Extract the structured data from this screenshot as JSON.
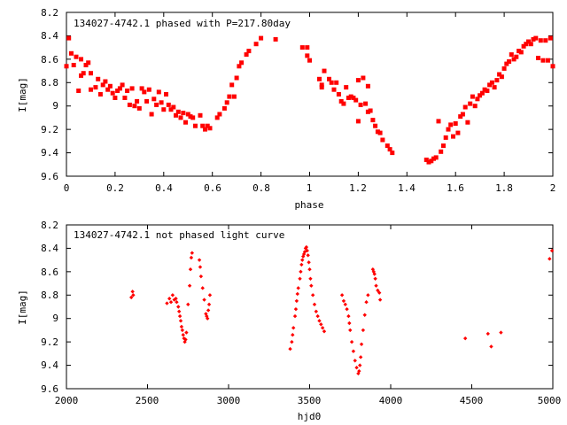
{
  "chart_data": [
    {
      "type": "scatter",
      "title": "134027-4742.1 phased with P=217.80day",
      "xlabel": "phase",
      "ylabel": "I[mag]",
      "xlim": [
        0,
        2
      ],
      "ylim": [
        9.6,
        8.2
      ],
      "y_inverted": true,
      "xticks": [
        "0",
        "0.2",
        "0.4",
        "0.6",
        "0.8",
        "1",
        "1.2",
        "1.4",
        "1.6",
        "1.8",
        "2"
      ],
      "yticks": [
        "8.2",
        "8.4",
        "8.6",
        "8.8",
        "9",
        "9.2",
        "9.4",
        "9.6"
      ],
      "grid": false,
      "marker_color": "#ff0000",
      "marker": "filled-square",
      "series": [
        {
          "points": [
            [
              0.0,
              8.66
            ],
            [
              0.01,
              8.42
            ],
            [
              0.02,
              8.55
            ],
            [
              0.03,
              8.65
            ],
            [
              0.04,
              8.58
            ],
            [
              0.05,
              8.87
            ],
            [
              0.06,
              8.74
            ],
            [
              0.06,
              8.6
            ],
            [
              0.07,
              8.72
            ],
            [
              0.08,
              8.65
            ],
            [
              0.09,
              8.63
            ],
            [
              0.1,
              8.86
            ],
            [
              0.1,
              8.72
            ],
            [
              0.12,
              8.84
            ],
            [
              0.13,
              8.77
            ],
            [
              0.14,
              8.9
            ],
            [
              0.15,
              8.82
            ],
            [
              0.16,
              8.79
            ],
            [
              0.17,
              8.86
            ],
            [
              0.18,
              8.83
            ],
            [
              0.19,
              8.89
            ],
            [
              0.2,
              8.93
            ],
            [
              0.21,
              8.87
            ],
            [
              0.22,
              8.85
            ],
            [
              0.23,
              8.82
            ],
            [
              0.24,
              8.93
            ],
            [
              0.25,
              8.87
            ],
            [
              0.26,
              8.99
            ],
            [
              0.27,
              8.85
            ],
            [
              0.28,
              9.0
            ],
            [
              0.29,
              8.96
            ],
            [
              0.3,
              9.02
            ],
            [
              0.31,
              8.85
            ],
            [
              0.32,
              8.88
            ],
            [
              0.33,
              8.96
            ],
            [
              0.34,
              8.86
            ],
            [
              0.35,
              9.07
            ],
            [
              0.36,
              8.94
            ],
            [
              0.37,
              8.99
            ],
            [
              0.38,
              8.88
            ],
            [
              0.39,
              8.97
            ],
            [
              0.4,
              9.03
            ],
            [
              0.41,
              8.9
            ],
            [
              0.42,
              8.99
            ],
            [
              0.43,
              9.03
            ],
            [
              0.44,
              9.01
            ],
            [
              0.45,
              9.08
            ],
            [
              0.46,
              9.05
            ],
            [
              0.47,
              9.1
            ],
            [
              0.48,
              9.06
            ],
            [
              0.49,
              9.14
            ],
            [
              0.5,
              9.07
            ],
            [
              0.51,
              9.09
            ],
            [
              0.52,
              9.1
            ],
            [
              0.53,
              9.17
            ],
            [
              0.55,
              9.08
            ],
            [
              0.56,
              9.17
            ],
            [
              0.57,
              9.2
            ],
            [
              0.58,
              9.17
            ],
            [
              0.59,
              9.19
            ],
            [
              0.62,
              9.1
            ],
            [
              0.63,
              9.07
            ],
            [
              0.65,
              9.02
            ],
            [
              0.66,
              8.97
            ],
            [
              0.67,
              8.92
            ],
            [
              0.68,
              8.82
            ],
            [
              0.69,
              8.92
            ],
            [
              0.7,
              8.76
            ],
            [
              0.71,
              8.66
            ],
            [
              0.72,
              8.63
            ],
            [
              0.74,
              8.56
            ],
            [
              0.75,
              8.53
            ],
            [
              0.78,
              8.47
            ],
            [
              0.8,
              8.42
            ],
            [
              0.86,
              8.43
            ],
            [
              0.97,
              8.5
            ],
            [
              0.99,
              8.5
            ],
            [
              0.99,
              8.57
            ],
            [
              1.0,
              8.61
            ],
            [
              1.04,
              8.77
            ],
            [
              1.05,
              8.82
            ],
            [
              1.05,
              8.84
            ],
            [
              1.06,
              8.7
            ],
            [
              1.08,
              8.77
            ],
            [
              1.09,
              8.8
            ],
            [
              1.1,
              8.86
            ],
            [
              1.11,
              8.8
            ],
            [
              1.12,
              8.9
            ],
            [
              1.13,
              8.96
            ],
            [
              1.14,
              8.98
            ],
            [
              1.15,
              8.84
            ],
            [
              1.16,
              8.93
            ],
            [
              1.17,
              8.92
            ],
            [
              1.18,
              8.93
            ],
            [
              1.19,
              8.95
            ],
            [
              1.2,
              8.78
            ],
            [
              1.2,
              9.13
            ],
            [
              1.21,
              8.99
            ],
            [
              1.22,
              8.76
            ],
            [
              1.23,
              8.98
            ],
            [
              1.24,
              8.83
            ],
            [
              1.24,
              9.05
            ],
            [
              1.25,
              9.04
            ],
            [
              1.26,
              9.12
            ],
            [
              1.27,
              9.17
            ],
            [
              1.28,
              9.22
            ],
            [
              1.29,
              9.23
            ],
            [
              1.3,
              9.29
            ],
            [
              1.32,
              9.34
            ],
            [
              1.33,
              9.37
            ],
            [
              1.34,
              9.4
            ],
            [
              1.48,
              9.46
            ],
            [
              1.49,
              9.48
            ],
            [
              1.5,
              9.47
            ],
            [
              1.51,
              9.45
            ],
            [
              1.52,
              9.44
            ],
            [
              1.53,
              9.13
            ],
            [
              1.54,
              9.39
            ],
            [
              1.55,
              9.34
            ],
            [
              1.56,
              9.27
            ],
            [
              1.57,
              9.2
            ],
            [
              1.58,
              9.16
            ],
            [
              1.59,
              9.26
            ],
            [
              1.6,
              9.15
            ],
            [
              1.61,
              9.23
            ],
            [
              1.62,
              9.09
            ],
            [
              1.63,
              9.07
            ],
            [
              1.64,
              9.01
            ],
            [
              1.65,
              9.14
            ],
            [
              1.66,
              8.98
            ],
            [
              1.67,
              8.92
            ],
            [
              1.68,
              9.0
            ],
            [
              1.69,
              8.94
            ],
            [
              1.7,
              8.91
            ],
            [
              1.71,
              8.89
            ],
            [
              1.72,
              8.86
            ],
            [
              1.73,
              8.87
            ],
            [
              1.74,
              8.82
            ],
            [
              1.75,
              8.8
            ],
            [
              1.76,
              8.84
            ],
            [
              1.77,
              8.78
            ],
            [
              1.78,
              8.73
            ],
            [
              1.79,
              8.75
            ],
            [
              1.8,
              8.68
            ],
            [
              1.81,
              8.64
            ],
            [
              1.82,
              8.62
            ],
            [
              1.83,
              8.56
            ],
            [
              1.84,
              8.6
            ],
            [
              1.85,
              8.58
            ],
            [
              1.86,
              8.53
            ],
            [
              1.87,
              8.54
            ],
            [
              1.88,
              8.49
            ],
            [
              1.89,
              8.47
            ],
            [
              1.9,
              8.45
            ],
            [
              1.91,
              8.47
            ],
            [
              1.92,
              8.43
            ],
            [
              1.93,
              8.42
            ],
            [
              1.94,
              8.59
            ],
            [
              1.95,
              8.44
            ],
            [
              1.96,
              8.61
            ],
            [
              1.97,
              8.44
            ],
            [
              1.98,
              8.61
            ],
            [
              1.99,
              8.42
            ],
            [
              2.0,
              8.66
            ]
          ]
        }
      ]
    },
    {
      "type": "scatter",
      "title": "134027-4742.1 not phased light curve",
      "xlabel": "hjd0",
      "ylabel": "I[mag]",
      "xlim": [
        2000,
        5000
      ],
      "ylim": [
        9.6,
        8.2
      ],
      "y_inverted": true,
      "xticks": [
        "2000",
        "2500",
        "3000",
        "3500",
        "4000",
        "4500",
        "5000"
      ],
      "yticks": [
        "8.2",
        "8.4",
        "8.6",
        "8.8",
        "9",
        "9.2",
        "9.4",
        "9.6"
      ],
      "grid": false,
      "marker_color": "#ff0000",
      "marker": "filled-diamond",
      "series": [
        {
          "points": [
            [
              2400,
              8.82
            ],
            [
              2408,
              8.77
            ],
            [
              2412,
              8.8
            ],
            [
              2620,
              8.87
            ],
            [
              2635,
              8.83
            ],
            [
              2645,
              8.86
            ],
            [
              2655,
              8.8
            ],
            [
              2665,
              8.84
            ],
            [
              2675,
              8.83
            ],
            [
              2680,
              8.86
            ],
            [
              2690,
              8.9
            ],
            [
              2695,
              8.94
            ],
            [
              2700,
              8.98
            ],
            [
              2705,
              9.02
            ],
            [
              2710,
              9.07
            ],
            [
              2715,
              9.1
            ],
            [
              2720,
              9.14
            ],
            [
              2725,
              9.17
            ],
            [
              2730,
              9.2
            ],
            [
              2735,
              9.18
            ],
            [
              2740,
              9.12
            ],
            [
              2750,
              8.88
            ],
            [
              2760,
              8.72
            ],
            [
              2765,
              8.58
            ],
            [
              2770,
              8.48
            ],
            [
              2775,
              8.44
            ],
            [
              2820,
              8.5
            ],
            [
              2825,
              8.56
            ],
            [
              2830,
              8.64
            ],
            [
              2840,
              8.74
            ],
            [
              2850,
              8.84
            ],
            [
              2860,
              8.96
            ],
            [
              2865,
              8.98
            ],
            [
              2870,
              9.0
            ],
            [
              2875,
              8.93
            ],
            [
              2880,
              8.88
            ],
            [
              2885,
              8.8
            ],
            [
              3380,
              9.26
            ],
            [
              3390,
              9.2
            ],
            [
              3395,
              9.14
            ],
            [
              3400,
              9.08
            ],
            [
              3410,
              8.98
            ],
            [
              3415,
              8.92
            ],
            [
              3420,
              8.85
            ],
            [
              3425,
              8.79
            ],
            [
              3430,
              8.74
            ],
            [
              3440,
              8.66
            ],
            [
              3445,
              8.6
            ],
            [
              3450,
              8.54
            ],
            [
              3455,
              8.5
            ],
            [
              3460,
              8.47
            ],
            [
              3465,
              8.45
            ],
            [
              3470,
              8.43
            ],
            [
              3475,
              8.4
            ],
            [
              3480,
              8.39
            ],
            [
              3485,
              8.42
            ],
            [
              3490,
              8.46
            ],
            [
              3495,
              8.52
            ],
            [
              3500,
              8.58
            ],
            [
              3505,
              8.66
            ],
            [
              3510,
              8.72
            ],
            [
              3520,
              8.8
            ],
            [
              3530,
              8.88
            ],
            [
              3540,
              8.94
            ],
            [
              3550,
              8.98
            ],
            [
              3560,
              9.02
            ],
            [
              3570,
              9.05
            ],
            [
              3580,
              9.08
            ],
            [
              3590,
              9.11
            ],
            [
              3700,
              8.8
            ],
            [
              3710,
              8.85
            ],
            [
              3720,
              8.88
            ],
            [
              3730,
              8.92
            ],
            [
              3740,
              8.98
            ],
            [
              3745,
              9.04
            ],
            [
              3750,
              9.1
            ],
            [
              3760,
              9.2
            ],
            [
              3770,
              9.28
            ],
            [
              3780,
              9.36
            ],
            [
              3790,
              9.42
            ],
            [
              3800,
              9.47
            ],
            [
              3805,
              9.45
            ],
            [
              3810,
              9.4
            ],
            [
              3815,
              9.33
            ],
            [
              3820,
              9.22
            ],
            [
              3830,
              9.1
            ],
            [
              3840,
              8.97
            ],
            [
              3850,
              8.86
            ],
            [
              3860,
              8.8
            ],
            [
              3890,
              8.58
            ],
            [
              3895,
              8.6
            ],
            [
              3900,
              8.62
            ],
            [
              3905,
              8.66
            ],
            [
              3910,
              8.72
            ],
            [
              3920,
              8.76
            ],
            [
              3930,
              8.78
            ],
            [
              3935,
              8.84
            ],
            [
              4460,
              9.17
            ],
            [
              4600,
              9.13
            ],
            [
              4620,
              9.24
            ],
            [
              4680,
              9.12
            ],
            [
              4980,
              8.49
            ],
            [
              4995,
              8.42
            ]
          ]
        }
      ]
    }
  ]
}
